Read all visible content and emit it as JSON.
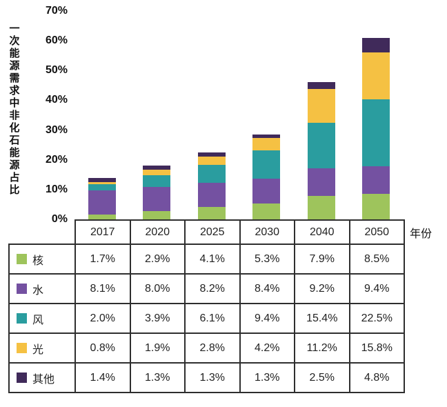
{
  "chart_data": {
    "type": "bar",
    "subtype": "stacked",
    "title": "",
    "ylabel": "一次能源需求中非化石能源占比",
    "xlabel": "年份",
    "categories": [
      "2017",
      "2020",
      "2025",
      "2030",
      "2040",
      "2050"
    ],
    "series": [
      {
        "name": "核",
        "color": "#9ec45c",
        "values": [
          1.7,
          2.9,
          4.1,
          5.3,
          7.9,
          8.5
        ]
      },
      {
        "name": "水",
        "color": "#7451a1",
        "values": [
          8.1,
          8.0,
          8.2,
          8.4,
          9.2,
          9.4
        ]
      },
      {
        "name": "风",
        "color": "#2a9d9f",
        "values": [
          2.0,
          3.9,
          6.1,
          9.4,
          15.4,
          22.5
        ]
      },
      {
        "name": "光",
        "color": "#f5c143",
        "values": [
          0.8,
          1.9,
          2.8,
          4.2,
          11.2,
          15.8
        ]
      },
      {
        "name": "其他",
        "color": "#402a5a",
        "values": [
          1.4,
          1.3,
          1.3,
          1.3,
          2.5,
          4.8
        ]
      }
    ],
    "ylim": [
      0,
      70
    ],
    "yticks": [
      "0%",
      "10%",
      "20%",
      "30%",
      "40%",
      "50%",
      "60%",
      "70%"
    ],
    "value_suffix": "%",
    "grid": false,
    "legend_position": "table-left-column"
  }
}
